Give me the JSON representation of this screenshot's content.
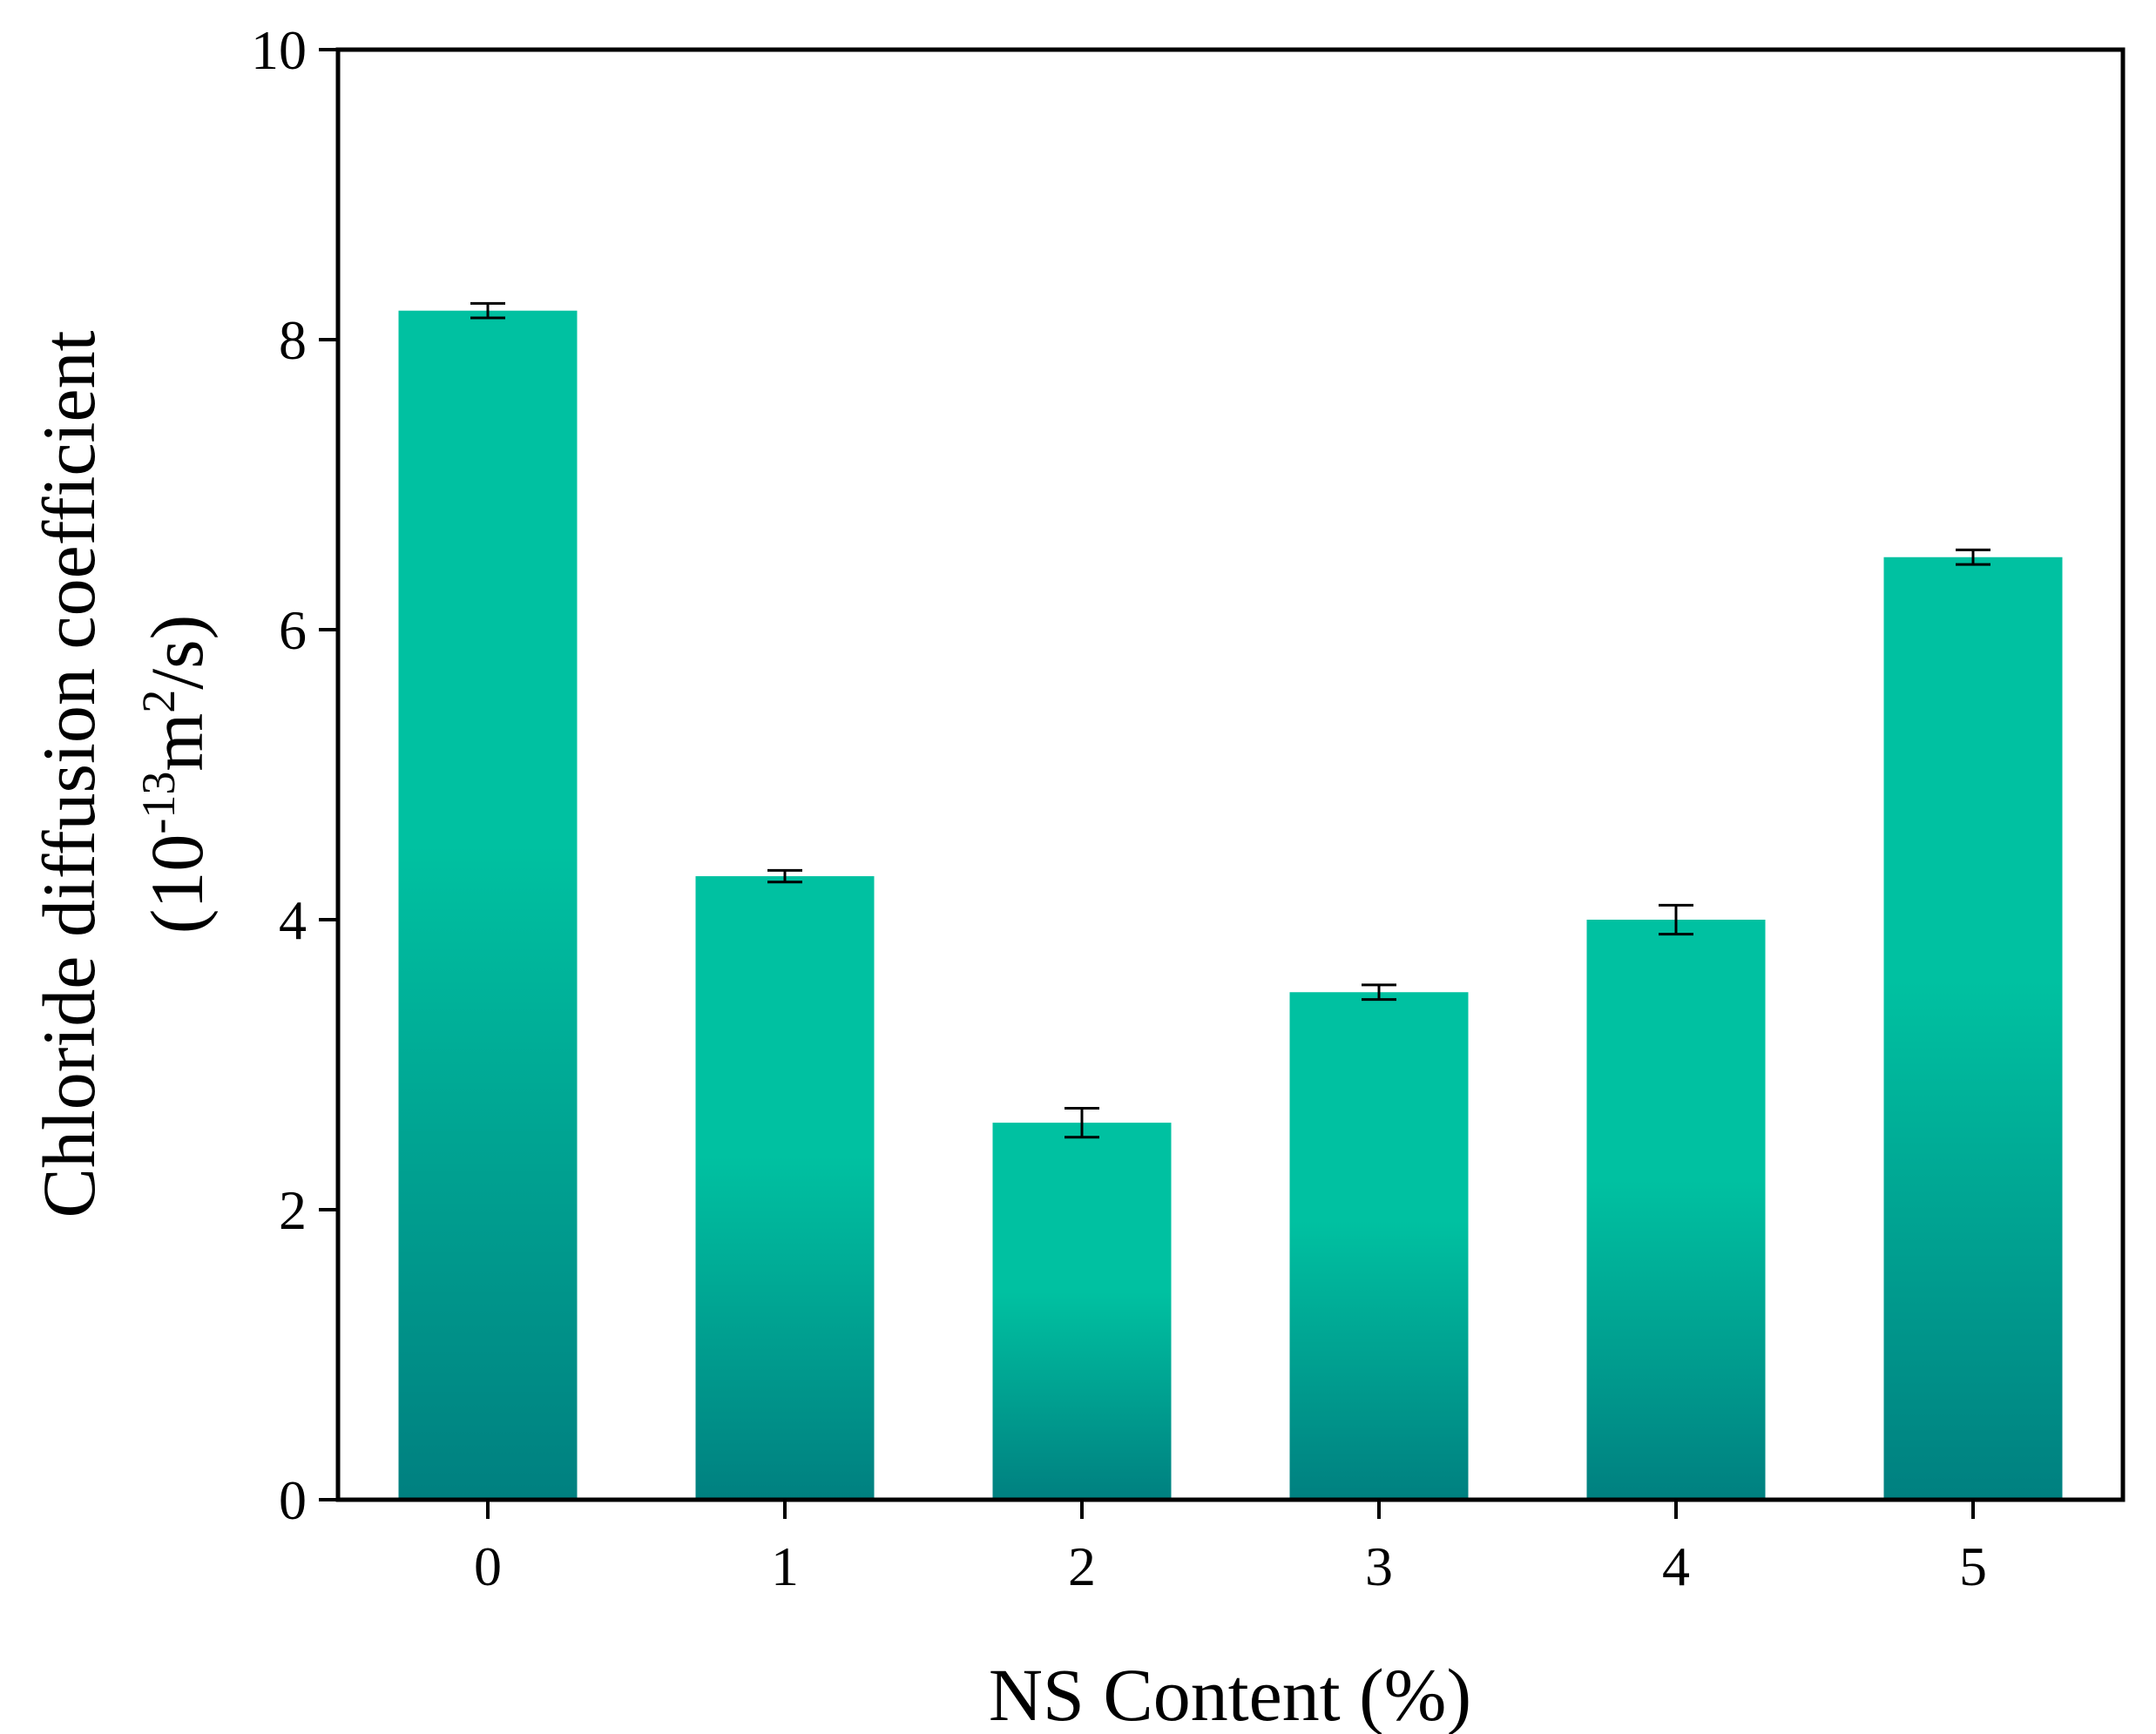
{
  "chart_data": {
    "type": "bar",
    "categories": [
      "0",
      "1",
      "2",
      "3",
      "4",
      "5"
    ],
    "values": [
      8.2,
      4.3,
      2.6,
      3.5,
      4.0,
      6.5
    ],
    "errors": [
      0.05,
      0.04,
      0.1,
      0.05,
      0.1,
      0.05
    ],
    "xlabel": "NS Content (%)",
    "ylabel": {
      "line1": "Chloride diffusion coefficient",
      "line2_pre": "(10",
      "line2_sup1": "-13",
      "line2_mid": "m",
      "line2_sup2": "2",
      "line2_post": "/s)"
    },
    "ylim": [
      0,
      10
    ],
    "yticks": [
      0,
      2,
      4,
      6,
      8,
      10
    ],
    "ytick_labels": [
      "0",
      "2",
      "4",
      "6",
      "8",
      "10"
    ],
    "grid": false,
    "colors": {
      "bar_top": "#00C1A1",
      "bar_bottom": "#008080",
      "axis": "#000000"
    }
  }
}
